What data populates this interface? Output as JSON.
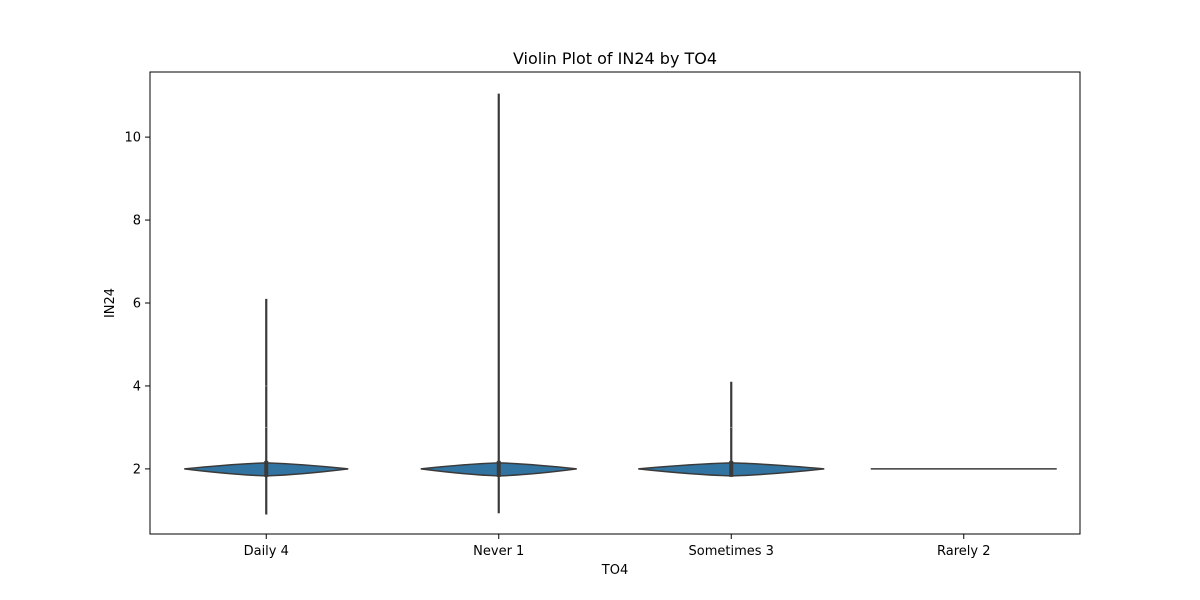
{
  "chart_data": {
    "type": "violin",
    "title": "Violin Plot of IN24 by TO4",
    "xlabel": "TO4",
    "ylabel": "IN24",
    "categories": [
      "Daily 4",
      "Never 1",
      "Sometimes 3",
      "Rarely 2"
    ],
    "ylim": [
      0.43,
      11.57
    ],
    "yticks": [
      2,
      4,
      6,
      8,
      10
    ],
    "grid": false,
    "legend": "none",
    "violins": [
      {
        "category": "Daily 4",
        "min": 0.9,
        "q1": 2.0,
        "median": 2.0,
        "q3": 2.0,
        "max": 6.1,
        "extra_points": [
          3,
          4
        ]
      },
      {
        "category": "Never 1",
        "min": 0.93,
        "q1": 2.0,
        "median": 2.0,
        "q3": 2.0,
        "max": 11.05,
        "extra_points": []
      },
      {
        "category": "Sometimes 3",
        "min": 2.0,
        "q1": 2.0,
        "median": 2.0,
        "q3": 2.0,
        "max": 4.1,
        "extra_points": [
          3
        ]
      },
      {
        "category": "Rarely 2",
        "min": 2.0,
        "q1": 2.0,
        "median": 2.0,
        "q3": 2.0,
        "max": 2.0,
        "extra_points": []
      }
    ],
    "colors": {
      "fill": "#3274a1",
      "edge": "#3a3a3a",
      "whisker": "#3a3a3a"
    }
  }
}
